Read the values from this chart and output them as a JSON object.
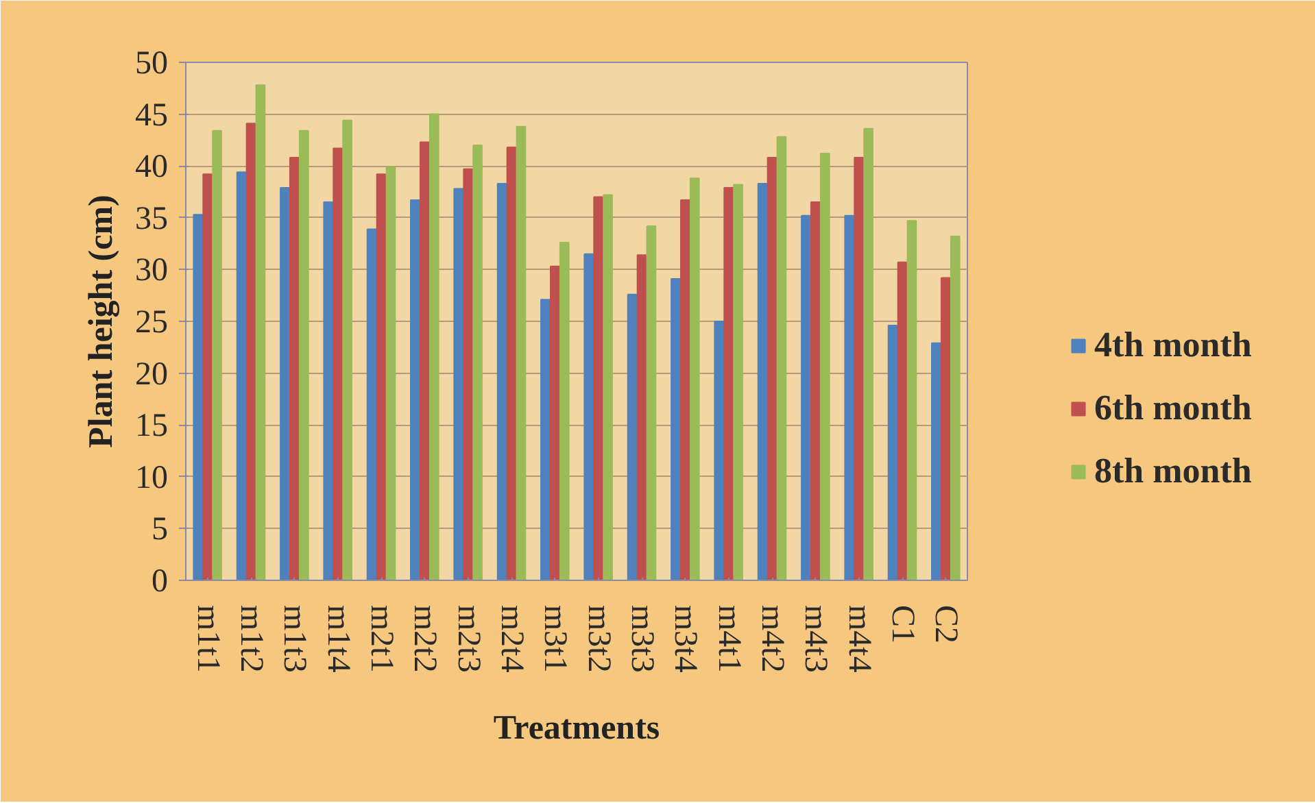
{
  "chart_data": {
    "type": "bar",
    "xlabel": "Treatments",
    "ylabel": "Plant height (cm)",
    "categories": [
      "m1t1",
      "m1t2",
      "m1t3",
      "m1t4",
      "m2t1",
      "m2t2",
      "m2t3",
      "m2t4",
      "m3t1",
      "m3t2",
      "m3t3",
      "m3t4",
      "m4t1",
      "m4t2",
      "m4t3",
      "m4t4",
      "C1",
      "C2"
    ],
    "series": [
      {
        "name": "4th month",
        "color": "#4f81bd",
        "values": [
          35.3,
          39.4,
          37.9,
          36.5,
          33.9,
          36.7,
          37.8,
          38.3,
          27.1,
          31.5,
          27.6,
          29.1,
          25.0,
          38.3,
          35.2,
          35.2,
          24.6,
          22.9
        ]
      },
      {
        "name": "6th month",
        "color": "#c0504d",
        "values": [
          39.2,
          44.1,
          40.8,
          41.7,
          39.2,
          42.3,
          39.7,
          41.8,
          30.3,
          37.0,
          31.4,
          36.7,
          37.9,
          40.8,
          36.5,
          40.8,
          30.7,
          29.2
        ]
      },
      {
        "name": "8th month",
        "color": "#9bbb59",
        "values": [
          43.4,
          47.8,
          43.4,
          44.4,
          39.9,
          45.0,
          42.0,
          43.8,
          32.6,
          37.2,
          34.2,
          38.8,
          38.2,
          42.8,
          41.2,
          43.6,
          34.7,
          33.2
        ]
      }
    ],
    "ylim": [
      0,
      50
    ],
    "yticks": [
      0,
      5,
      10,
      15,
      20,
      25,
      30,
      35,
      40,
      45,
      50
    ],
    "grid": "y",
    "legend": "right"
  }
}
